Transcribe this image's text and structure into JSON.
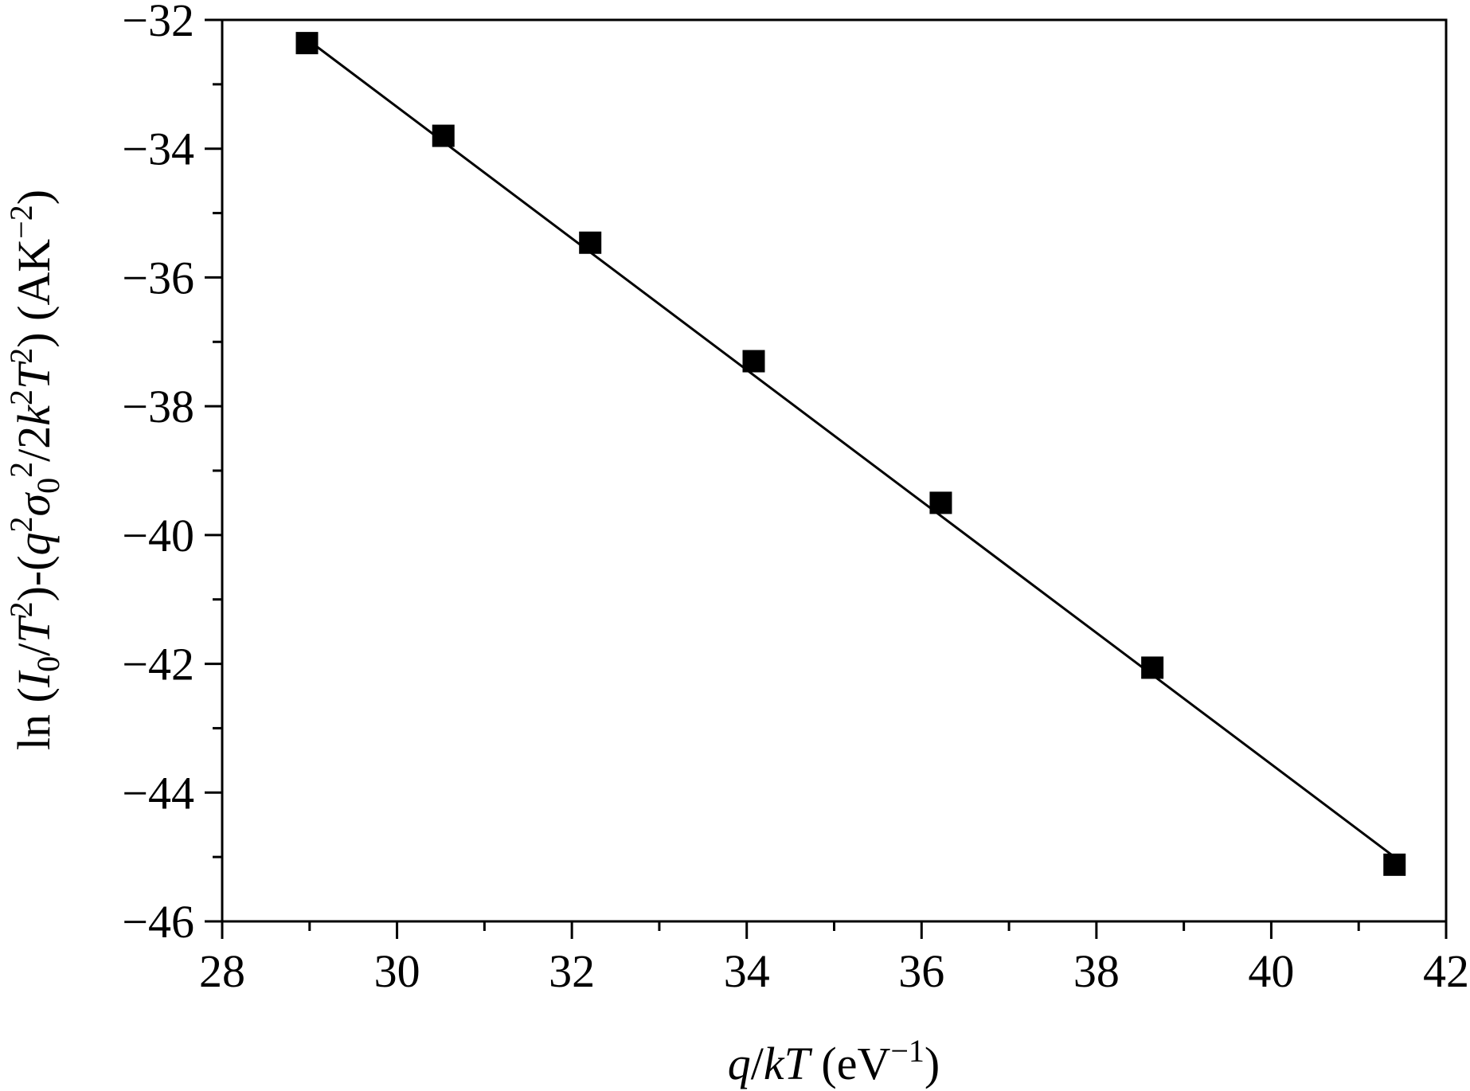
{
  "chart_data": {
    "type": "scatter",
    "xlabel": {
      "q": "q",
      "slash": "/",
      "kT": "kT",
      "unit_open": " (eV",
      "exp": "−1",
      "unit_close": ")"
    },
    "ylabel": {
      "p1": "ln (",
      "I": "I",
      "I_sub": "0",
      "p2": "/",
      "T": "T",
      "T_sup": "2",
      "p3": ")-(",
      "q": "q",
      "q_sup": "2",
      "sigma": "σ",
      "sigma_sub": "0",
      "sigma_sup": "2",
      "p4": "/2",
      "k": "k",
      "k_sup": "2",
      "T2": "T",
      "T2_sup": "2",
      "p5": ") (AK",
      "unit_sup": "−2",
      "p6": ")"
    },
    "xlim": [
      28,
      42
    ],
    "ylim": [
      -46,
      -32
    ],
    "x_ticks": [
      28,
      30,
      32,
      34,
      36,
      38,
      40,
      42
    ],
    "x_tick_labels": [
      "28",
      "30",
      "32",
      "34",
      "36",
      "38",
      "40",
      "42"
    ],
    "y_ticks": [
      -46,
      -44,
      -42,
      -40,
      -38,
      -36,
      -34,
      -32
    ],
    "y_tick_labels": [
      "−46",
      "−44",
      "−42",
      "−40",
      "−38",
      "−36",
      "−34",
      "−32"
    ],
    "series": [
      {
        "marker": "square",
        "color": "#000000",
        "x": [
          28.97,
          30.53,
          32.21,
          34.08,
          36.22,
          38.64,
          41.41
        ],
        "y": [
          -32.36,
          -33.8,
          -35.46,
          -37.3,
          -39.5,
          -42.06,
          -45.12
        ]
      }
    ],
    "fit_line": {
      "x": [
        28.97,
        41.41
      ],
      "y": [
        -32.3,
        -45.0
      ],
      "color": "#000000"
    },
    "grid": false,
    "legend": false
  }
}
